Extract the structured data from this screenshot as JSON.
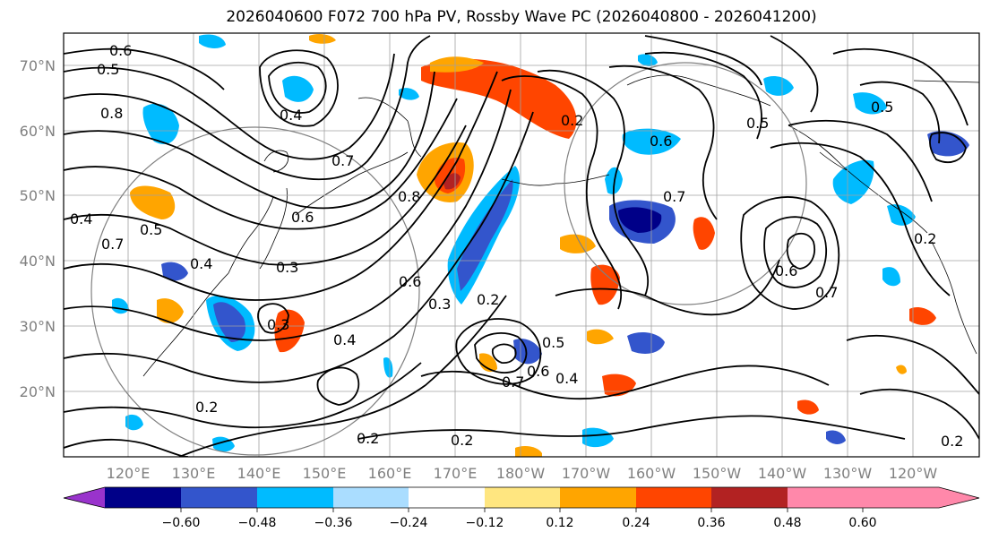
{
  "title": "2026040600 F072 700 hPa PV, Rossby Wave PC (2026040800 - 2026041200)",
  "lat_labels": [
    "70°N",
    "60°N",
    "50°N",
    "40°N",
    "30°N",
    "20°N"
  ],
  "lon_labels": [
    "120°E",
    "130°E",
    "140°E",
    "150°E",
    "160°E",
    "170°E",
    "180°W",
    "170°W",
    "160°W",
    "150°W",
    "140°W",
    "130°W",
    "120°W"
  ],
  "colorbar": {
    "colors": [
      "#9933cc",
      "#000088",
      "#3355cc",
      "#00bbff",
      "#aaddff",
      "#ffffff",
      "#ffe680",
      "#ffa500",
      "#ff4500",
      "#b22222",
      "#ff88aa"
    ],
    "tick_labels": [
      "−0.60",
      "−0.48",
      "−0.36",
      "−0.24",
      "−0.12",
      "0.12",
      "0.24",
      "0.36",
      "0.48",
      "0.60"
    ]
  },
  "contour_labels": [
    "0.6",
    "0.5",
    "0.8",
    "0.7",
    "0.4",
    "0.4",
    "0.5",
    "0.6",
    "0.3",
    "0.4",
    "0.3",
    "0.4",
    "0.2",
    "0.2",
    "0.3",
    "0.6",
    "0.8",
    "0.7",
    "0.2",
    "0.2",
    "0.5",
    "0.6",
    "0.7",
    "0.4",
    "0.2",
    "0.6",
    "0.5",
    "0.7",
    "0.5",
    "0.7",
    "0.6",
    "0.2",
    "0.2"
  ]
}
